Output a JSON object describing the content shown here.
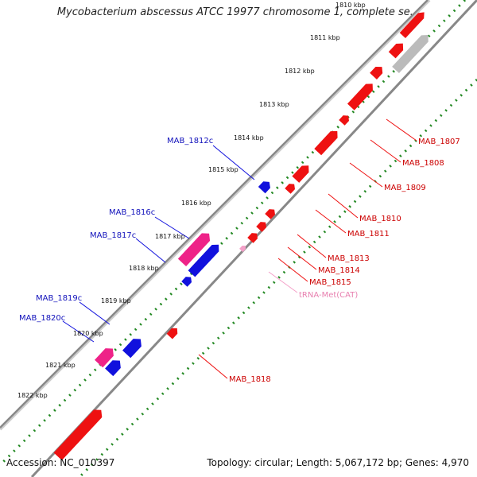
{
  "title": "Mycobacterium abscessus ATCC 19977 chromosome 1, complete se...",
  "footer": {
    "accession": "Accession: NC_010397",
    "topology": "Topology: circular; Length: 5,067,172 bp; Genes: 4,970"
  },
  "colors": {
    "forward_gene": "#ee1111",
    "reverse_gene": "#1111dd",
    "pseudo_gene": "#ee2288",
    "trna": "#f4a0c8",
    "other_feature": "#bbbbbb",
    "ruler_dots": "#228822",
    "backbone": "#888888"
  },
  "scale_ticks": [
    "1810 kbp",
    "1811 kbp",
    "1812 kbp",
    "1813 kbp",
    "1814 kbp",
    "1815 kbp",
    "1816 kbp",
    "1817 kbp",
    "1818 kbp",
    "1819 kbp",
    "1820 kbp",
    "1821 kbp",
    "1822 kbp"
  ],
  "forward_labels": [
    "MAB_1807",
    "MAB_1808",
    "MAB_1809",
    "MAB_1810",
    "MAB_1811",
    "MAB_1813",
    "MAB_1814",
    "MAB_1815",
    "MAB_1818"
  ],
  "trna_label": "tRNA-Met(CAT)",
  "reverse_labels": [
    "MAB_1812c",
    "MAB_1816c",
    "MAB_1817c",
    "MAB_1819c",
    "MAB_1820c"
  ]
}
